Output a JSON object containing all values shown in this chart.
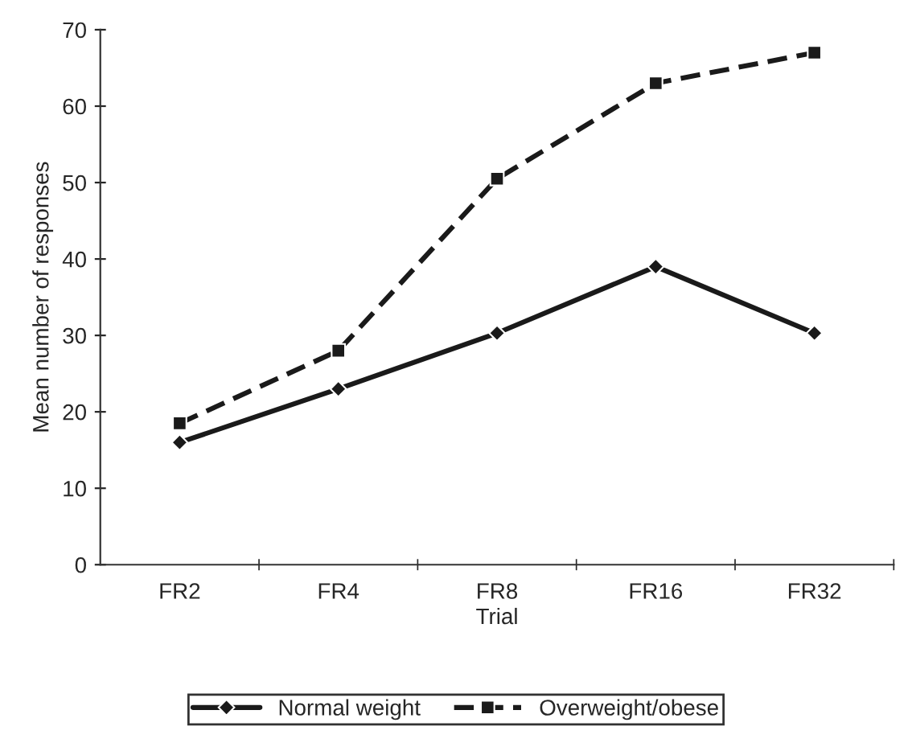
{
  "chart_data": {
    "type": "line",
    "xlabel": "Trial",
    "ylabel": "Mean number of responses",
    "categories": [
      "FR2",
      "FR4",
      "FR8",
      "FR16",
      "FR32"
    ],
    "series": [
      {
        "name": "Normal weight",
        "color": "#1a1a1a",
        "marker": "diamond",
        "line_style": "solid",
        "values": [
          16,
          23,
          30.3,
          39,
          30.3
        ]
      },
      {
        "name": "Overweight/obese",
        "color": "#1a1a1a",
        "marker": "square",
        "line_style": "dashed",
        "values": [
          18.5,
          28,
          50.5,
          63,
          67
        ]
      }
    ],
    "ylim": [
      0,
      70
    ],
    "yticks": [
      0,
      10,
      20,
      30,
      40,
      50,
      60,
      70
    ],
    "grid": false,
    "legend": "bottom"
  }
}
